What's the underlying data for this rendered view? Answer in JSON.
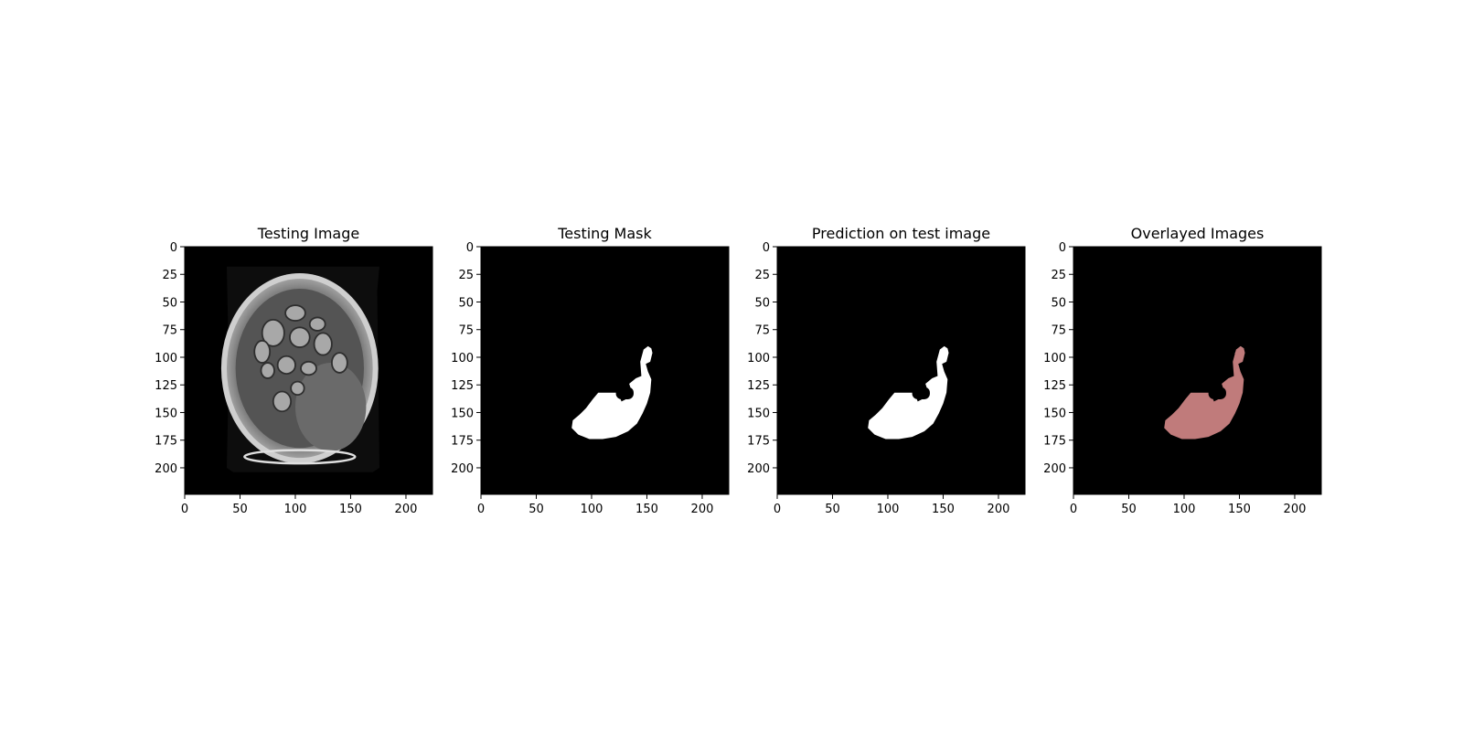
{
  "figure": {
    "panels": [
      {
        "title": "Testing Image",
        "kind": "mri"
      },
      {
        "title": "Testing Mask",
        "kind": "mask-true"
      },
      {
        "title": "Prediction on test image",
        "kind": "mask-pred"
      },
      {
        "title": "Overlayed Images",
        "kind": "overlay"
      }
    ],
    "x_ticks": [
      0,
      50,
      100,
      150,
      200
    ],
    "y_ticks": [
      0,
      25,
      50,
      75,
      100,
      125,
      150,
      175,
      200
    ],
    "image_extent": [
      0,
      224
    ],
    "colors": {
      "image_background": "#000000",
      "mask": "#ffffff",
      "overlay": "#c07b7b"
    }
  }
}
